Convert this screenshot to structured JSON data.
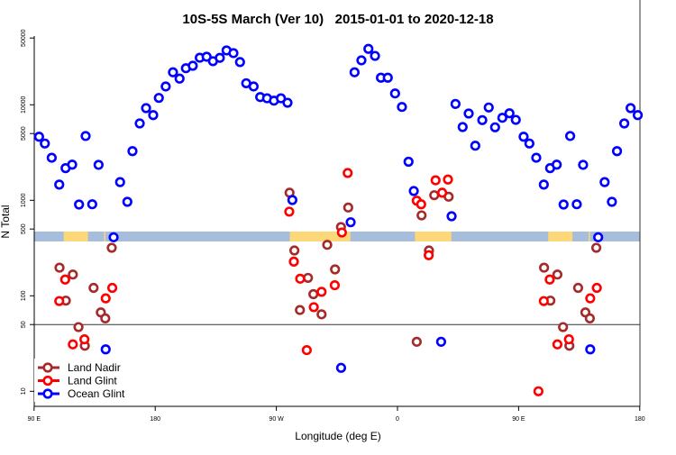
{
  "chart_data": {
    "type": "scatter",
    "title": "10S-5S March (Ver 10)   2015-01-01 to 2020-12-18",
    "xlabel": "Longitude (deg E)",
    "ylabel": "N Total",
    "y_scale": "log",
    "ylim": [
      8,
      55000
    ],
    "x_ticks": [
      {
        "lon": -270,
        "label": "90 E"
      },
      {
        "lon": -180,
        "label": "180"
      },
      {
        "lon": -90,
        "label": "90 W"
      },
      {
        "lon": 0,
        "label": "0"
      },
      {
        "lon": 90,
        "label": "90 E"
      },
      {
        "lon": 180,
        "label": "180"
      }
    ],
    "y_ticks": [
      {
        "value": 10,
        "label": "10"
      },
      {
        "value": 50,
        "label": "50"
      },
      {
        "value": 100,
        "label": "100"
      },
      {
        "value": 500,
        "label": "500"
      },
      {
        "value": 1000,
        "label": "1000"
      },
      {
        "value": 5000,
        "label": "5000"
      },
      {
        "value": 10000,
        "label": "10000"
      },
      {
        "value": 50000,
        "label": "50000"
      }
    ],
    "reference_line": 50,
    "map_strip": {
      "ocean_color": "#a6bddb",
      "land_color": "#fdd878",
      "land_lon_ranges": [
        [
          -80,
          -35
        ],
        [
          13,
          40
        ],
        [
          112,
          130
        ],
        [
          142,
          143
        ]
      ]
    },
    "legend_position": "bottom-left",
    "series": [
      {
        "name": "Land Nadir",
        "color": "#a52a2a",
        "points": [
          [
            108.9,
            197
          ],
          [
            113.6,
            89
          ],
          [
            118.8,
            167
          ],
          [
            123.0,
            47
          ],
          [
            127.7,
            30
          ],
          [
            134.2,
            121
          ],
          [
            139.6,
            67
          ],
          [
            142.9,
            58
          ],
          [
            147.7,
            318
          ],
          [
            -80.2,
            1200
          ],
          [
            -76.6,
            298
          ],
          [
            -72.5,
            71
          ],
          [
            -66.5,
            154
          ],
          [
            -62.5,
            104
          ],
          [
            -56.4,
            64
          ],
          [
            -52.2,
            342
          ],
          [
            -46.4,
            189
          ],
          [
            -42.0,
            525
          ],
          [
            -36.6,
            840
          ],
          [
            14.3,
            33
          ],
          [
            17.9,
            695
          ],
          [
            23.4,
            298
          ],
          [
            27.3,
            1130
          ],
          [
            38.0,
            1090
          ]
        ]
      },
      {
        "name": "Land Glint",
        "color": "#ff0000",
        "points": [
          [
            104.7,
            10
          ],
          [
            108.7,
            88
          ],
          [
            113.1,
            148
          ],
          [
            118.8,
            31
          ],
          [
            127.4,
            35
          ],
          [
            143.2,
            94
          ],
          [
            148.1,
            121
          ],
          [
            -80.4,
            760
          ],
          [
            -77.0,
            228
          ],
          [
            -72.3,
            151
          ],
          [
            -67.4,
            27
          ],
          [
            -62.2,
            76
          ],
          [
            -56.4,
            110
          ],
          [
            -46.6,
            129
          ],
          [
            -41.3,
            460
          ],
          [
            -37.0,
            1930
          ],
          [
            14.3,
            990
          ],
          [
            17.6,
            908
          ],
          [
            23.2,
            266
          ],
          [
            28.3,
            1620
          ],
          [
            33.2,
            1200
          ],
          [
            37.5,
            1650
          ]
        ]
      },
      {
        "name": "Ocean Glint",
        "color": "#0000ff",
        "points": [
          [
            93.7,
            4630
          ],
          [
            98.0,
            3930
          ],
          [
            103.1,
            2790
          ],
          [
            108.7,
            1460
          ],
          [
            113.4,
            2170
          ],
          [
            118.3,
            2360
          ],
          [
            123.4,
            903
          ],
          [
            128.3,
            4710
          ],
          [
            133.2,
            909
          ],
          [
            137.9,
            2350
          ],
          [
            143.2,
            27.5
          ],
          [
            149.1,
            410
          ],
          [
            153.9,
            1550
          ],
          [
            159.3,
            964
          ],
          [
            163.1,
            3270
          ],
          [
            168.5,
            6380
          ],
          [
            173.2,
            9230
          ],
          [
            178.5,
            7800
          ],
          [
            -177.3,
            11800
          ],
          [
            -172.2,
            15550
          ],
          [
            -166.8,
            21900
          ],
          [
            -161.9,
            18800
          ],
          [
            -157.2,
            24150
          ],
          [
            -152.1,
            25600
          ],
          [
            -146.9,
            31100
          ],
          [
            -141.8,
            31850
          ],
          [
            -137.1,
            28600
          ],
          [
            -132.0,
            31000
          ],
          [
            -127.0,
            37100
          ],
          [
            -121.9,
            34750
          ],
          [
            -117.0,
            28000
          ],
          [
            -112.4,
            16800
          ],
          [
            -106.9,
            15550
          ],
          [
            -102.0,
            12050
          ],
          [
            -96.9,
            11700
          ],
          [
            -91.8,
            11050
          ],
          [
            -86.6,
            11700
          ],
          [
            -81.7,
            10500
          ],
          [
            -78.1,
            1007
          ],
          [
            -41.9,
            17.6
          ],
          [
            -34.8,
            589
          ],
          [
            -31.9,
            21900
          ],
          [
            -26.8,
            29200
          ],
          [
            -21.6,
            38500
          ],
          [
            -16.7,
            32500
          ],
          [
            -12.3,
            19200
          ],
          [
            -7.2,
            19200
          ],
          [
            -1.8,
            13150
          ],
          [
            3.3,
            9490
          ],
          [
            8.2,
            2535
          ],
          [
            12.1,
            1250
          ],
          [
            32.4,
            33
          ],
          [
            40.2,
            681
          ],
          [
            43.1,
            10200
          ],
          [
            48.4,
            5850
          ],
          [
            52.9,
            8100
          ],
          [
            57.8,
            3730
          ],
          [
            63.0,
            6910
          ],
          [
            67.8,
            9370
          ],
          [
            72.5,
            5810
          ],
          [
            77.9,
            7310
          ],
          [
            83.2,
            8150
          ],
          [
            87.9,
            6950
          ]
        ]
      }
    ]
  }
}
